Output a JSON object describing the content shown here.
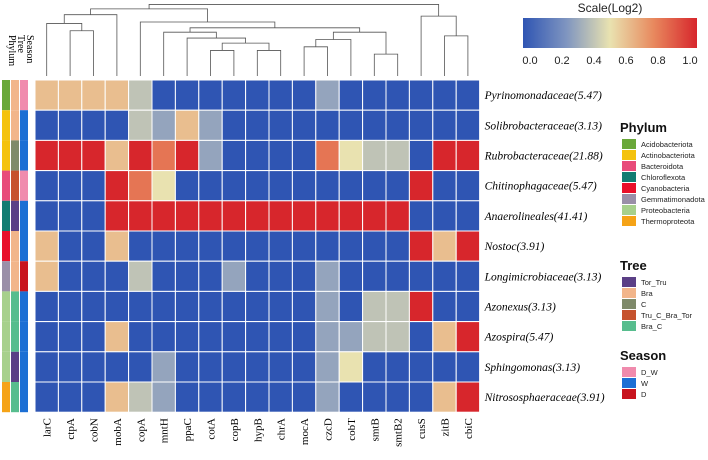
{
  "chart_data": {
    "type": "heatmap",
    "title": "",
    "scale": {
      "title": "Scale(Log2)",
      "ticks": [
        "0.0",
        "0.2",
        "0.4",
        "0.6",
        "0.8",
        "1.0"
      ],
      "range": [
        0,
        1
      ],
      "colors": [
        "#2f55b3",
        "#7f95c0",
        "#e9e2b0",
        "#e8895e",
        "#d7262c"
      ]
    },
    "annotation_headers": [
      "Phylum",
      "Tree",
      "Season"
    ],
    "columns": [
      "larC",
      "ctpA",
      "cobN",
      "mobA",
      "copA",
      "mntH",
      "ppaC",
      "cotA",
      "copB",
      "hypB",
      "chrA",
      "mocA",
      "czcD",
      "cobT",
      "smtB",
      "smtB2",
      "cusS",
      "zitB",
      "cbiC"
    ],
    "rows": [
      "Pyrinomonadaceae(5.47)",
      "Solibrobacteraceae(3.13)",
      "Rubrobacteraceae(21.88)",
      "Chitinophagaceae(5.47)",
      "Anaerolineales(41.41)",
      "Nostoc(3.91)",
      "Longimicrobiaceae(3.13)",
      "Azonexus(3.13)",
      "Azospira(5.47)",
      "Sphingomonas(3.13)",
      "Nitrososphaeraceae(3.91)"
    ],
    "values": [
      [
        0.6,
        0.6,
        0.6,
        0.6,
        0.4,
        0,
        0,
        0,
        0,
        0,
        0,
        0,
        0.3,
        0,
        0,
        0,
        0,
        0,
        0
      ],
      [
        0,
        0,
        0,
        0,
        0.4,
        0.3,
        0.6,
        0.3,
        0,
        0,
        0,
        0,
        0,
        0,
        0,
        0,
        0,
        0,
        0
      ],
      [
        1,
        1,
        1,
        0.6,
        1,
        0.8,
        1,
        0.3,
        0,
        0,
        0,
        0,
        0.8,
        0.5,
        0.4,
        0.4,
        0,
        1,
        1
      ],
      [
        0,
        0,
        0,
        1,
        0.8,
        0.5,
        0,
        0,
        0,
        0,
        0,
        0,
        0,
        0,
        0,
        0,
        1,
        0,
        0
      ],
      [
        0,
        0,
        0,
        1,
        1,
        1,
        1,
        1,
        1,
        1,
        1,
        1,
        1,
        1,
        1,
        1,
        0,
        0,
        0
      ],
      [
        0.6,
        0,
        0,
        0.6,
        0,
        0,
        0,
        0,
        0,
        0,
        0,
        0,
        0,
        0,
        0,
        0,
        1,
        0.6,
        1
      ],
      [
        0.6,
        0,
        0,
        0,
        0.4,
        0,
        0,
        0,
        0.3,
        0,
        0,
        0,
        0.3,
        0,
        0,
        0,
        0,
        0,
        0
      ],
      [
        0,
        0,
        0,
        0,
        0,
        0,
        0,
        0,
        0,
        0,
        0,
        0,
        0.3,
        0,
        0.4,
        0.4,
        1,
        0,
        0
      ],
      [
        0,
        0,
        0,
        0.6,
        0,
        0,
        0,
        0,
        0,
        0,
        0,
        0,
        0.3,
        0.3,
        0.4,
        0.4,
        0,
        0.6,
        1
      ],
      [
        0,
        0,
        0,
        0,
        0,
        0.3,
        0,
        0,
        0,
        0,
        0,
        0,
        0.3,
        0.5,
        0,
        0,
        0,
        0,
        0
      ],
      [
        0,
        0,
        0,
        0.6,
        0.4,
        0.3,
        0,
        0,
        0,
        0,
        0,
        0,
        0.3,
        0,
        0,
        0,
        0,
        0.6,
        1
      ]
    ],
    "row_annotations": {
      "phylum": [
        "Acidobacteriota",
        "Actinobacteriota",
        "Actinobacteriota",
        "Bacteroidota",
        "Chloroflexota",
        "Cyanobacteria",
        "Gemmatimonadota",
        "Proteobacteria",
        "Proteobacteria",
        "Proteobacteria",
        "Thermoproteota"
      ],
      "tree": [
        "Bra",
        "Bra",
        "C",
        "Tru_C_Bra_Tor",
        "Tor_Tru",
        "Bra",
        "Bra",
        "Bra_C",
        "Bra_C",
        "Tor_Tru",
        "Bra_C"
      ],
      "season": [
        "D_W",
        "W",
        "W",
        "D_W",
        "W",
        "W",
        "D",
        "W",
        "W",
        "W",
        "W"
      ]
    },
    "column_dendrogram": "tree",
    "legends": [
      {
        "key": "phylum",
        "title": "Phylum",
        "items": [
          {
            "label": "Acidobacteriota",
            "color": "#6aa83a"
          },
          {
            "label": "Actinobacteriota",
            "color": "#f4c20d"
          },
          {
            "label": "Bacteroidota",
            "color": "#e84b7a"
          },
          {
            "label": "Chloroflexota",
            "color": "#127c72"
          },
          {
            "label": "Cyanobacteria",
            "color": "#e8102a"
          },
          {
            "label": "Gemmatimonadota",
            "color": "#9a8fa8"
          },
          {
            "label": "Proteobacteria",
            "color": "#a7d08c"
          },
          {
            "label": "Thermoproteota",
            "color": "#f5a317"
          }
        ]
      },
      {
        "key": "tree",
        "title": "Tree",
        "items": [
          {
            "label": "Tor_Tru",
            "color": "#5b3f86"
          },
          {
            "label": "Bra",
            "color": "#f2b58a"
          },
          {
            "label": "C",
            "color": "#7f8a6a"
          },
          {
            "label": "Tru_C_Bra_Tor",
            "color": "#c6532e"
          },
          {
            "label": "Bra_C",
            "color": "#57bd8e"
          }
        ]
      },
      {
        "key": "season",
        "title": "Season",
        "items": [
          {
            "label": "D_W",
            "color": "#f08bad"
          },
          {
            "label": "W",
            "color": "#1c6fd4"
          },
          {
            "label": "D",
            "color": "#c8141e"
          }
        ]
      }
    ]
  }
}
